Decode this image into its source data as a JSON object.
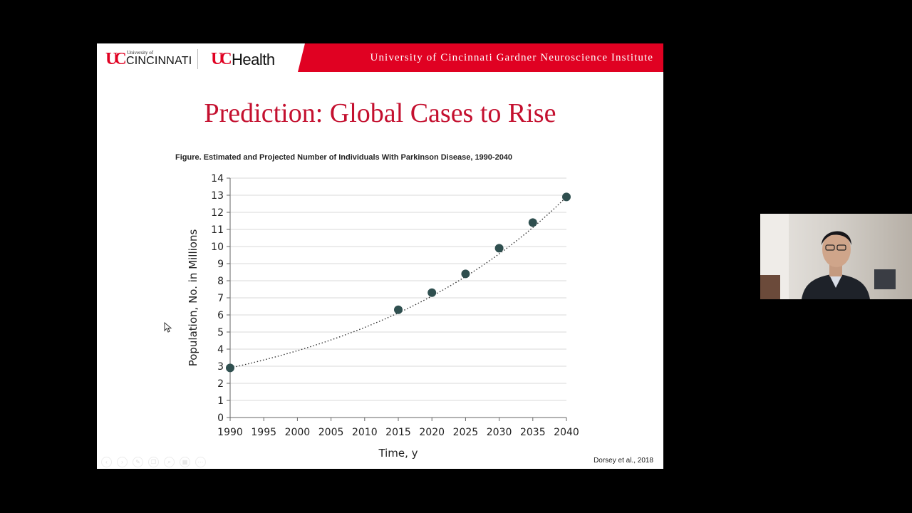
{
  "header": {
    "university_of": "University of",
    "cincinnati": "CINCINNATI",
    "uc_mark": "UC",
    "health": "Health",
    "institute": "University of Cincinnati Gardner Neuroscience Institute"
  },
  "slide": {
    "title": "Prediction: Global Cases to Rise",
    "citation": "Dorsey et al., 2018"
  },
  "toolbar": {
    "buttons": [
      "back-icon",
      "forward-icon",
      "pen-icon",
      "copy-icon",
      "zoom-icon",
      "grid-icon",
      "more-icon"
    ]
  },
  "chart_data": {
    "type": "scatter",
    "caption": "Figure.  Estimated and Projected Number of Individuals With Parkinson Disease, 1990-2040",
    "xlabel": "Time, y",
    "ylabel": "Population, No. in Millions",
    "xlim": [
      1990,
      2040
    ],
    "ylim": [
      0,
      14
    ],
    "xticks": [
      1990,
      1995,
      2000,
      2005,
      2010,
      2015,
      2020,
      2025,
      2030,
      2035,
      2040
    ],
    "yticks": [
      0,
      1,
      2,
      3,
      4,
      5,
      6,
      7,
      8,
      9,
      10,
      11,
      12,
      13,
      14
    ],
    "grid": true,
    "points": [
      {
        "x": 1990,
        "y": 2.9
      },
      {
        "x": 2015,
        "y": 6.3
      },
      {
        "x": 2020,
        "y": 7.3
      },
      {
        "x": 2025,
        "y": 8.4
      },
      {
        "x": 2030,
        "y": 9.9
      },
      {
        "x": 2035,
        "y": 11.4
      },
      {
        "x": 2040,
        "y": 12.9
      }
    ],
    "trend": "dotted exponential fit"
  },
  "colors": {
    "brand_red": "#e00122",
    "title_red": "#c4102f",
    "marker": "#2f4f4f",
    "grid": "#d9d9d9"
  }
}
